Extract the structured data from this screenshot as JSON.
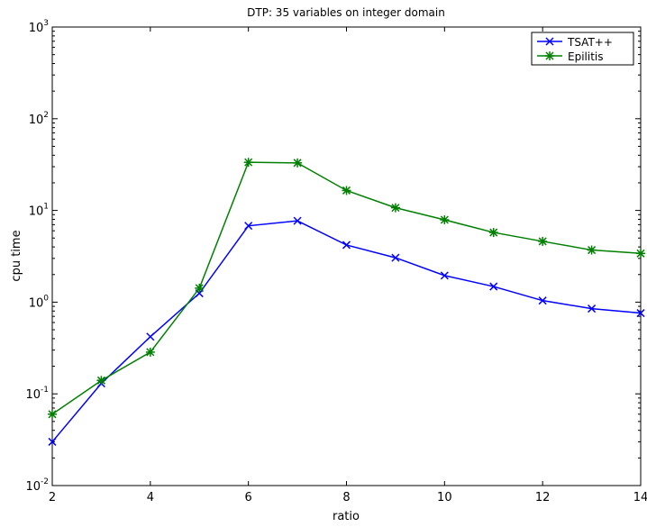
{
  "chart_data": {
    "type": "line",
    "title": "DTP: 35 variables on integer domain",
    "xlabel": "ratio",
    "ylabel": "cpu time",
    "x": [
      2,
      3,
      4,
      5,
      6,
      7,
      8,
      9,
      10,
      11,
      12,
      13,
      14
    ],
    "xlim": [
      2,
      14
    ],
    "ylim": [
      0.01,
      1000
    ],
    "yscale": "log",
    "xticks": [
      2,
      4,
      6,
      8,
      10,
      12,
      14
    ],
    "yticks": [
      {
        "base": "10",
        "exp": "-2",
        "value": 0.01
      },
      {
        "base": "10",
        "exp": "-1",
        "value": 0.1
      },
      {
        "base": "10",
        "exp": "0",
        "value": 1
      },
      {
        "base": "10",
        "exp": "1",
        "value": 10
      },
      {
        "base": "10",
        "exp": "2",
        "value": 100
      },
      {
        "base": "10",
        "exp": "3",
        "value": 1000
      }
    ],
    "grid": false,
    "legend_position": "top-right",
    "series": [
      {
        "name": "TSAT++",
        "color": "#0000ff",
        "marker": "x",
        "values": [
          0.03,
          0.13,
          0.42,
          1.25,
          6.8,
          7.7,
          4.2,
          3.05,
          1.95,
          1.48,
          1.04,
          0.85,
          0.76
        ]
      },
      {
        "name": "Epilitis",
        "color": "#008000",
        "marker": "asterisk",
        "values": [
          0.06,
          0.14,
          0.285,
          1.42,
          33.5,
          33.0,
          16.5,
          10.7,
          7.9,
          5.75,
          4.6,
          3.7,
          3.4
        ]
      }
    ]
  }
}
